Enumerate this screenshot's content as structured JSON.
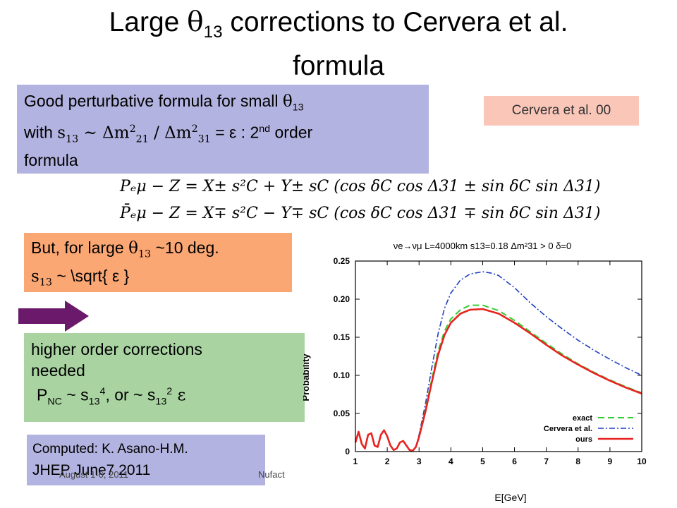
{
  "slide": {
    "title_line1_pre": "Large ",
    "title_theta": "θ",
    "title_theta_sub": "13",
    "title_line1_post": " corrections to Cervera et al.",
    "title_line2": "formula"
  },
  "box_perturbative": {
    "line1_text": "Good perturbative formula for small ",
    "line1_theta": "θ",
    "line1_sub": "13",
    "line2_with": "with ",
    "line2_s": "s",
    "line2_s_sub": "13",
    "line2_sim": " ~ Δm",
    "line2_dm21_sup": "2",
    "line2_dm21_sub": "21",
    "line2_slash": " / Δm",
    "line2_dm31_sup": "2",
    "line2_dm31_sub": "31",
    "line2_eq": " = ε : 2",
    "line2_nd": "nd",
    "line2_order": " order",
    "line3": "formula"
  },
  "cite": "Cervera et al. 00",
  "formulas": {
    "line1": "Pₑμ − Z = X± s²C + Y± sC (cos δC cos Δ31 ± sin δC sin Δ31)",
    "line2": "P̄ₑμ − Z = X∓ s²C − Y∓ sC (cos δC cos Δ31 ∓ sin δC sin Δ31)"
  },
  "box_large": {
    "line1_pre": "But, for large ",
    "line1_theta": "θ",
    "line1_sub": "13",
    "line1_post": " ~10 deg.",
    "line2_s": "s",
    "line2_sub": "13",
    "line2_rest": " ~ \\sqrt{ ε }"
  },
  "box_higher": {
    "line1": "higher order corrections",
    "line2": "needed",
    "line3_p": "P",
    "line3_nc": "NC",
    "line3_mid": " ~ s",
    "line3_sub1": "13",
    "line3_sup1": "4",
    "line3_or": ", or ~ s",
    "line3_sub2": "13",
    "line3_sup2": "2",
    "line3_eps": " ε"
  },
  "box_computed": {
    "line1": "Computed: K. Asano-H.M.",
    "line2": "JHEP June7 2011"
  },
  "footer": {
    "date": "August 1-6, 2011",
    "event": "Nufact"
  },
  "colors": {
    "exact": "#33cc33",
    "cervera": "#1f3fbf",
    "ours": "#e8231f",
    "arrow": "#6b1a6b"
  },
  "chart_data": {
    "type": "line",
    "title": "νe→νμ  L=4000km  s13=0.18  Δm²31 > 0  δ=0",
    "xlabel": "E[GeV]",
    "ylabel": "Probability",
    "xlim": [
      1,
      10
    ],
    "ylim": [
      0,
      0.25
    ],
    "xticks": [
      "1",
      "2",
      "3",
      "4",
      "5",
      "6",
      "7",
      "8",
      "9",
      "10"
    ],
    "yticks": [
      "0",
      "0.05",
      "0.10",
      "0.15",
      "0.20",
      "0.25"
    ],
    "legend_position": "bottom-right",
    "series": [
      {
        "name": "exact",
        "style": "dashed",
        "x": [
          1.0,
          1.1,
          1.2,
          1.3,
          1.4,
          1.5,
          1.6,
          1.7,
          1.8,
          1.9,
          2.0,
          2.1,
          2.2,
          2.3,
          2.4,
          2.5,
          2.6,
          2.7,
          2.8,
          2.9,
          3.0,
          3.2,
          3.4,
          3.6,
          3.8,
          4.0,
          4.3,
          4.6,
          5.0,
          5.5,
          6.0,
          6.5,
          7.0,
          7.5,
          8.0,
          8.5,
          9.0,
          9.5,
          10.0
        ],
        "y": [
          0.012,
          0.026,
          0.01,
          0.004,
          0.022,
          0.024,
          0.008,
          0.006,
          0.022,
          0.028,
          0.02,
          0.008,
          0.002,
          0.004,
          0.012,
          0.014,
          0.008,
          0.002,
          0.001,
          0.006,
          0.02,
          0.055,
          0.095,
          0.132,
          0.158,
          0.174,
          0.186,
          0.192,
          0.192,
          0.185,
          0.172,
          0.157,
          0.142,
          0.128,
          0.115,
          0.104,
          0.094,
          0.085,
          0.077
        ]
      },
      {
        "name": "Cervera et al.",
        "style": "dashdot",
        "x": [
          1.0,
          1.1,
          1.2,
          1.3,
          1.4,
          1.5,
          1.6,
          1.7,
          1.8,
          1.9,
          2.0,
          2.1,
          2.2,
          2.3,
          2.4,
          2.5,
          2.6,
          2.7,
          2.8,
          2.9,
          3.0,
          3.2,
          3.4,
          3.6,
          3.8,
          4.0,
          4.3,
          4.6,
          5.0,
          5.3,
          5.5,
          6.0,
          6.5,
          7.0,
          7.5,
          8.0,
          8.5,
          9.0,
          9.5,
          10.0
        ],
        "y": [
          0.012,
          0.026,
          0.01,
          0.004,
          0.022,
          0.024,
          0.008,
          0.006,
          0.022,
          0.028,
          0.02,
          0.008,
          0.002,
          0.004,
          0.012,
          0.014,
          0.008,
          0.002,
          0.001,
          0.006,
          0.022,
          0.062,
          0.11,
          0.155,
          0.188,
          0.208,
          0.225,
          0.233,
          0.236,
          0.234,
          0.231,
          0.215,
          0.195,
          0.177,
          0.161,
          0.146,
          0.133,
          0.121,
          0.11,
          0.1
        ]
      },
      {
        "name": "ours",
        "style": "solid",
        "x": [
          1.0,
          1.1,
          1.2,
          1.3,
          1.4,
          1.5,
          1.6,
          1.7,
          1.8,
          1.9,
          2.0,
          2.1,
          2.2,
          2.3,
          2.4,
          2.5,
          2.6,
          2.7,
          2.8,
          2.9,
          3.0,
          3.2,
          3.4,
          3.6,
          3.8,
          4.0,
          4.3,
          4.6,
          5.0,
          5.5,
          6.0,
          6.5,
          7.0,
          7.5,
          8.0,
          8.5,
          9.0,
          9.5,
          10.0
        ],
        "y": [
          0.012,
          0.026,
          0.01,
          0.004,
          0.022,
          0.024,
          0.008,
          0.006,
          0.022,
          0.028,
          0.02,
          0.008,
          0.002,
          0.004,
          0.012,
          0.014,
          0.008,
          0.002,
          0.001,
          0.006,
          0.019,
          0.052,
          0.091,
          0.127,
          0.153,
          0.169,
          0.181,
          0.186,
          0.187,
          0.181,
          0.169,
          0.155,
          0.14,
          0.126,
          0.114,
          0.103,
          0.093,
          0.084,
          0.076
        ]
      }
    ]
  }
}
